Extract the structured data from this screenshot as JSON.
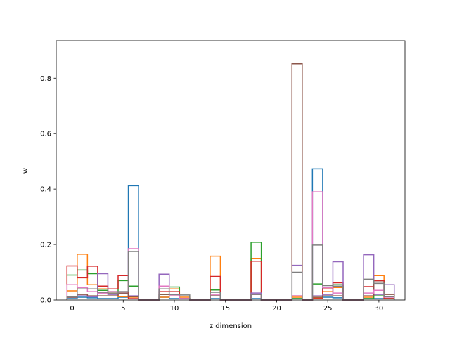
{
  "chart_data": {
    "type": "histogram",
    "xlabel": "z dimension",
    "ylabel": "w",
    "xlim": [
      -1.55,
      32.55
    ],
    "ylim": [
      0,
      0.935
    ],
    "x_ticks": [
      0,
      5,
      10,
      15,
      20,
      25,
      30
    ],
    "y_ticks": [
      0.0,
      0.2,
      0.4,
      0.6,
      0.8
    ],
    "x_tick_labels": [
      "0",
      "5",
      "10",
      "15",
      "20",
      "25",
      "30"
    ],
    "y_tick_labels": [
      "0.0",
      "0.2",
      "0.4",
      "0.6",
      "0.8"
    ],
    "grid": false,
    "histtype": "step",
    "bins": [
      -0.5,
      0.5,
      1.5,
      2.5,
      3.5,
      4.5,
      5.5,
      6.5,
      7.5,
      8.5,
      9.5,
      10.5,
      11.5,
      12.5,
      13.5,
      14.5,
      15.5,
      16.5,
      17.5,
      18.5,
      19.5,
      20.5,
      21.5,
      22.5,
      23.5,
      24.5,
      25.5,
      26.5,
      27.5,
      28.5,
      29.5,
      30.5,
      31.5
    ],
    "series": [
      {
        "color": "#1f77b4",
        "values": [
          0.005,
          0.01,
          0.008,
          0.005,
          0.005,
          0.01,
          0.412,
          0.0,
          0.0,
          0.01,
          0.005,
          0.005,
          0.0,
          0.0,
          0.005,
          0.0,
          0.0,
          0.0,
          0.005,
          0.0,
          0.0,
          0.0,
          0.005,
          0.0,
          0.473,
          0.01,
          0.008,
          0.0,
          0.0,
          0.005,
          0.005,
          0.005
        ]
      },
      {
        "color": "#ff7f0e",
        "values": [
          0.033,
          0.165,
          0.055,
          0.04,
          0.025,
          0.012,
          0.01,
          0.0,
          0.0,
          0.01,
          0.04,
          0.01,
          0.0,
          0.0,
          0.158,
          0.0,
          0.0,
          0.0,
          0.15,
          0.0,
          0.0,
          0.0,
          0.01,
          0.0,
          0.008,
          0.03,
          0.045,
          0.0,
          0.0,
          0.01,
          0.088,
          0.005
        ]
      },
      {
        "color": "#2ca02c",
        "values": [
          0.09,
          0.108,
          0.095,
          0.035,
          0.03,
          0.07,
          0.05,
          0.0,
          0.0,
          0.02,
          0.047,
          0.005,
          0.0,
          0.0,
          0.036,
          0.0,
          0.0,
          0.0,
          0.208,
          0.0,
          0.0,
          0.0,
          0.005,
          0.0,
          0.058,
          0.053,
          0.055,
          0.0,
          0.0,
          0.005,
          0.015,
          0.005
        ]
      },
      {
        "color": "#d62728",
        "values": [
          0.123,
          0.08,
          0.122,
          0.05,
          0.04,
          0.088,
          0.005,
          0.0,
          0.0,
          0.03,
          0.03,
          0.005,
          0.0,
          0.0,
          0.085,
          0.0,
          0.0,
          0.0,
          0.14,
          0.0,
          0.0,
          0.0,
          0.015,
          0.0,
          0.005,
          0.04,
          0.062,
          0.0,
          0.0,
          0.048,
          0.07,
          0.005
        ]
      },
      {
        "color": "#9467bd",
        "values": [
          0.01,
          0.015,
          0.012,
          0.095,
          0.02,
          0.025,
          0.015,
          0.0,
          0.0,
          0.093,
          0.02,
          0.005,
          0.0,
          0.0,
          0.015,
          0.0,
          0.0,
          0.0,
          0.025,
          0.0,
          0.0,
          0.0,
          0.125,
          0.0,
          0.015,
          0.02,
          0.138,
          0.0,
          0.0,
          0.163,
          0.02,
          0.055
        ]
      },
      {
        "color": "#8c564b",
        "values": [
          0.01,
          0.02,
          0.015,
          0.015,
          0.015,
          0.025,
          0.012,
          0.0,
          0.0,
          0.02,
          0.015,
          0.005,
          0.0,
          0.0,
          0.015,
          0.0,
          0.0,
          0.0,
          0.02,
          0.0,
          0.0,
          0.0,
          0.852,
          0.0,
          0.01,
          0.015,
          0.015,
          0.0,
          0.0,
          0.015,
          0.065,
          0.02
        ]
      },
      {
        "color": "#e377c2",
        "values": [
          0.055,
          0.045,
          0.03,
          0.025,
          0.03,
          0.03,
          0.185,
          0.0,
          0.0,
          0.05,
          0.015,
          0.005,
          0.0,
          0.0,
          0.02,
          0.0,
          0.0,
          0.0,
          0.02,
          0.0,
          0.0,
          0.0,
          0.015,
          0.0,
          0.39,
          0.045,
          0.025,
          0.0,
          0.0,
          0.025,
          0.035,
          0.01
        ]
      },
      {
        "color": "#7f7f7f",
        "values": [
          0.012,
          0.04,
          0.04,
          0.028,
          0.025,
          0.03,
          0.175,
          0.0,
          0.0,
          0.04,
          0.02,
          0.018,
          0.0,
          0.0,
          0.028,
          0.0,
          0.0,
          0.0,
          0.02,
          0.0,
          0.0,
          0.0,
          0.1,
          0.0,
          0.198,
          0.052,
          0.05,
          0.0,
          0.0,
          0.075,
          0.06,
          0.012
        ]
      }
    ]
  }
}
